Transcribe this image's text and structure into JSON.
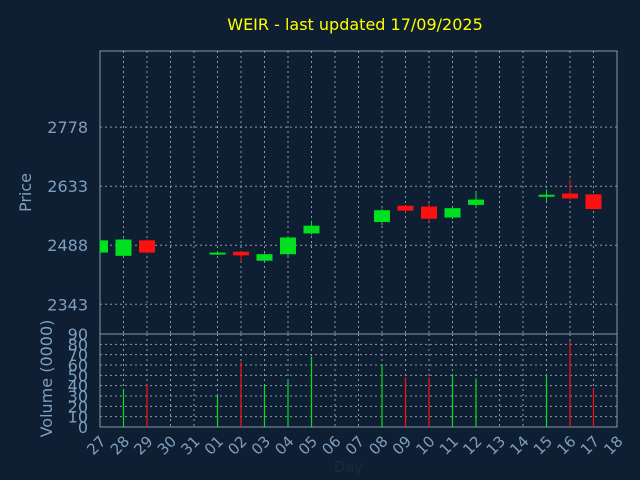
{
  "title": "WEIR - last updated 17/09/2025",
  "colors": {
    "background": "#0f1f33",
    "title": "#ffff00",
    "axis_text": "#7f9fbf",
    "grid": "#8a9aaa",
    "frame": "#8a9aaa",
    "up": "#00e020",
    "down": "#ff1010"
  },
  "chart_data": [
    {
      "type": "candlestick",
      "ylabel": "Price",
      "ylim": [
        2270,
        2965
      ],
      "yticks": [
        2343,
        2488,
        2633,
        2778
      ],
      "grid": true,
      "x_ticks": [
        "27",
        "28",
        "29",
        "30",
        "31",
        "01",
        "02",
        "03",
        "04",
        "05",
        "06",
        "07",
        "08",
        "09",
        "10",
        "11",
        "12",
        "13",
        "14",
        "15",
        "16",
        "17",
        "18"
      ],
      "candles": [
        {
          "day": "27",
          "open": 2470,
          "close": 2500,
          "high": 2500,
          "low": 2470
        },
        {
          "day": "28",
          "open": 2462,
          "close": 2502,
          "high": 2504,
          "low": 2460
        },
        {
          "day": "29",
          "open": 2500,
          "close": 2470,
          "high": 2502,
          "low": 2468
        },
        {
          "day": "01",
          "open": 2467,
          "close": 2470,
          "high": 2473,
          "low": 2464
        },
        {
          "day": "02",
          "open": 2472,
          "close": 2463,
          "high": 2474,
          "low": 2448
        },
        {
          "day": "03",
          "open": 2450,
          "close": 2466,
          "high": 2468,
          "low": 2448
        },
        {
          "day": "04",
          "open": 2466,
          "close": 2507,
          "high": 2510,
          "low": 2460
        },
        {
          "day": "05",
          "open": 2517,
          "close": 2536,
          "high": 2548,
          "low": 2514
        },
        {
          "day": "08",
          "open": 2545,
          "close": 2574,
          "high": 2578,
          "low": 2537
        },
        {
          "day": "09",
          "open": 2585,
          "close": 2573,
          "high": 2587,
          "low": 2570
        },
        {
          "day": "10",
          "open": 2583,
          "close": 2553,
          "high": 2592,
          "low": 2546
        },
        {
          "day": "11",
          "open": 2556,
          "close": 2579,
          "high": 2582,
          "low": 2552
        },
        {
          "day": "12",
          "open": 2587,
          "close": 2600,
          "high": 2618,
          "low": 2580
        },
        {
          "day": "15",
          "open": 2607,
          "close": 2612,
          "high": 2625,
          "low": 2596
        },
        {
          "day": "16",
          "open": 2615,
          "close": 2603,
          "high": 2650,
          "low": 2601
        },
        {
          "day": "17",
          "open": 2613,
          "close": 2577,
          "high": 2613,
          "low": 2576
        }
      ]
    },
    {
      "type": "bar",
      "ylabel": "Volume (0000)",
      "xlabel": "Day",
      "ylim": [
        0,
        90
      ],
      "yticks": [
        0,
        10,
        20,
        30,
        40,
        50,
        60,
        70,
        80,
        90
      ],
      "grid": true,
      "x_ticks": [
        "27",
        "28",
        "29",
        "30",
        "31",
        "01",
        "02",
        "03",
        "04",
        "05",
        "06",
        "07",
        "08",
        "09",
        "10",
        "11",
        "12",
        "13",
        "14",
        "15",
        "16",
        "17",
        "18"
      ],
      "bars": [
        {
          "day": "28",
          "value": 37,
          "direction": "up"
        },
        {
          "day": "29",
          "value": 41,
          "direction": "down"
        },
        {
          "day": "01",
          "value": 30,
          "direction": "up"
        },
        {
          "day": "02",
          "value": 63,
          "direction": "down"
        },
        {
          "day": "03",
          "value": 40,
          "direction": "up"
        },
        {
          "day": "04",
          "value": 45,
          "direction": "up"
        },
        {
          "day": "05",
          "value": 68,
          "direction": "up"
        },
        {
          "day": "08",
          "value": 60,
          "direction": "up"
        },
        {
          "day": "09",
          "value": 48,
          "direction": "down"
        },
        {
          "day": "10",
          "value": 48,
          "direction": "down"
        },
        {
          "day": "11",
          "value": 51,
          "direction": "up"
        },
        {
          "day": "12",
          "value": 47,
          "direction": "up"
        },
        {
          "day": "15",
          "value": 50,
          "direction": "up"
        },
        {
          "day": "16",
          "value": 83,
          "direction": "down"
        },
        {
          "day": "17",
          "value": 38,
          "direction": "down"
        }
      ]
    }
  ]
}
